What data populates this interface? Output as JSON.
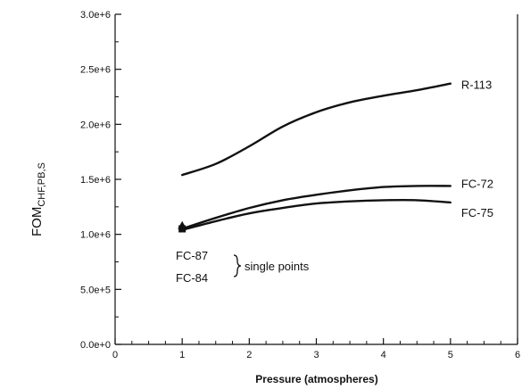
{
  "chart_data": {
    "type": "line",
    "xlabel": "Pressure (atmospheres)",
    "ylabel_main": "FOM",
    "ylabel_sub": "CHF,PB,S",
    "xlim": [
      0,
      6
    ],
    "ylim": [
      0,
      3000000
    ],
    "x_ticks": [
      "0",
      "1",
      "2",
      "3",
      "4",
      "5",
      "6"
    ],
    "y_ticks": [
      "0.0e+0",
      "5.0e+5",
      "1.0e+6",
      "1.5e+6",
      "2.0e+6",
      "2.5e+6",
      "3.0e+6"
    ],
    "grid": false,
    "series": [
      {
        "name": "R-113",
        "x": [
          1,
          1.5,
          2,
          2.5,
          3,
          3.5,
          4,
          4.5,
          5
        ],
        "y": [
          1540000,
          1640000,
          1800000,
          1980000,
          2110000,
          2200000,
          2260000,
          2310000,
          2370000
        ]
      },
      {
        "name": "FC-72",
        "x": [
          1,
          1.5,
          2,
          2.5,
          3,
          3.5,
          4,
          4.5,
          5
        ],
        "y": [
          1050000,
          1150000,
          1240000,
          1310000,
          1360000,
          1400000,
          1430000,
          1440000,
          1440000
        ]
      },
      {
        "name": "FC-75",
        "x": [
          1,
          1.5,
          2,
          2.5,
          3,
          3.5,
          4,
          4.5,
          5
        ],
        "y": [
          1040000,
          1120000,
          1190000,
          1240000,
          1280000,
          1300000,
          1310000,
          1310000,
          1290000
        ]
      }
    ],
    "single_points": [
      {
        "name": "FC-87",
        "x": 1,
        "y": 1080000
      },
      {
        "name": "FC-84",
        "x": 1,
        "y": 1050000
      }
    ],
    "annotation": "single points"
  }
}
